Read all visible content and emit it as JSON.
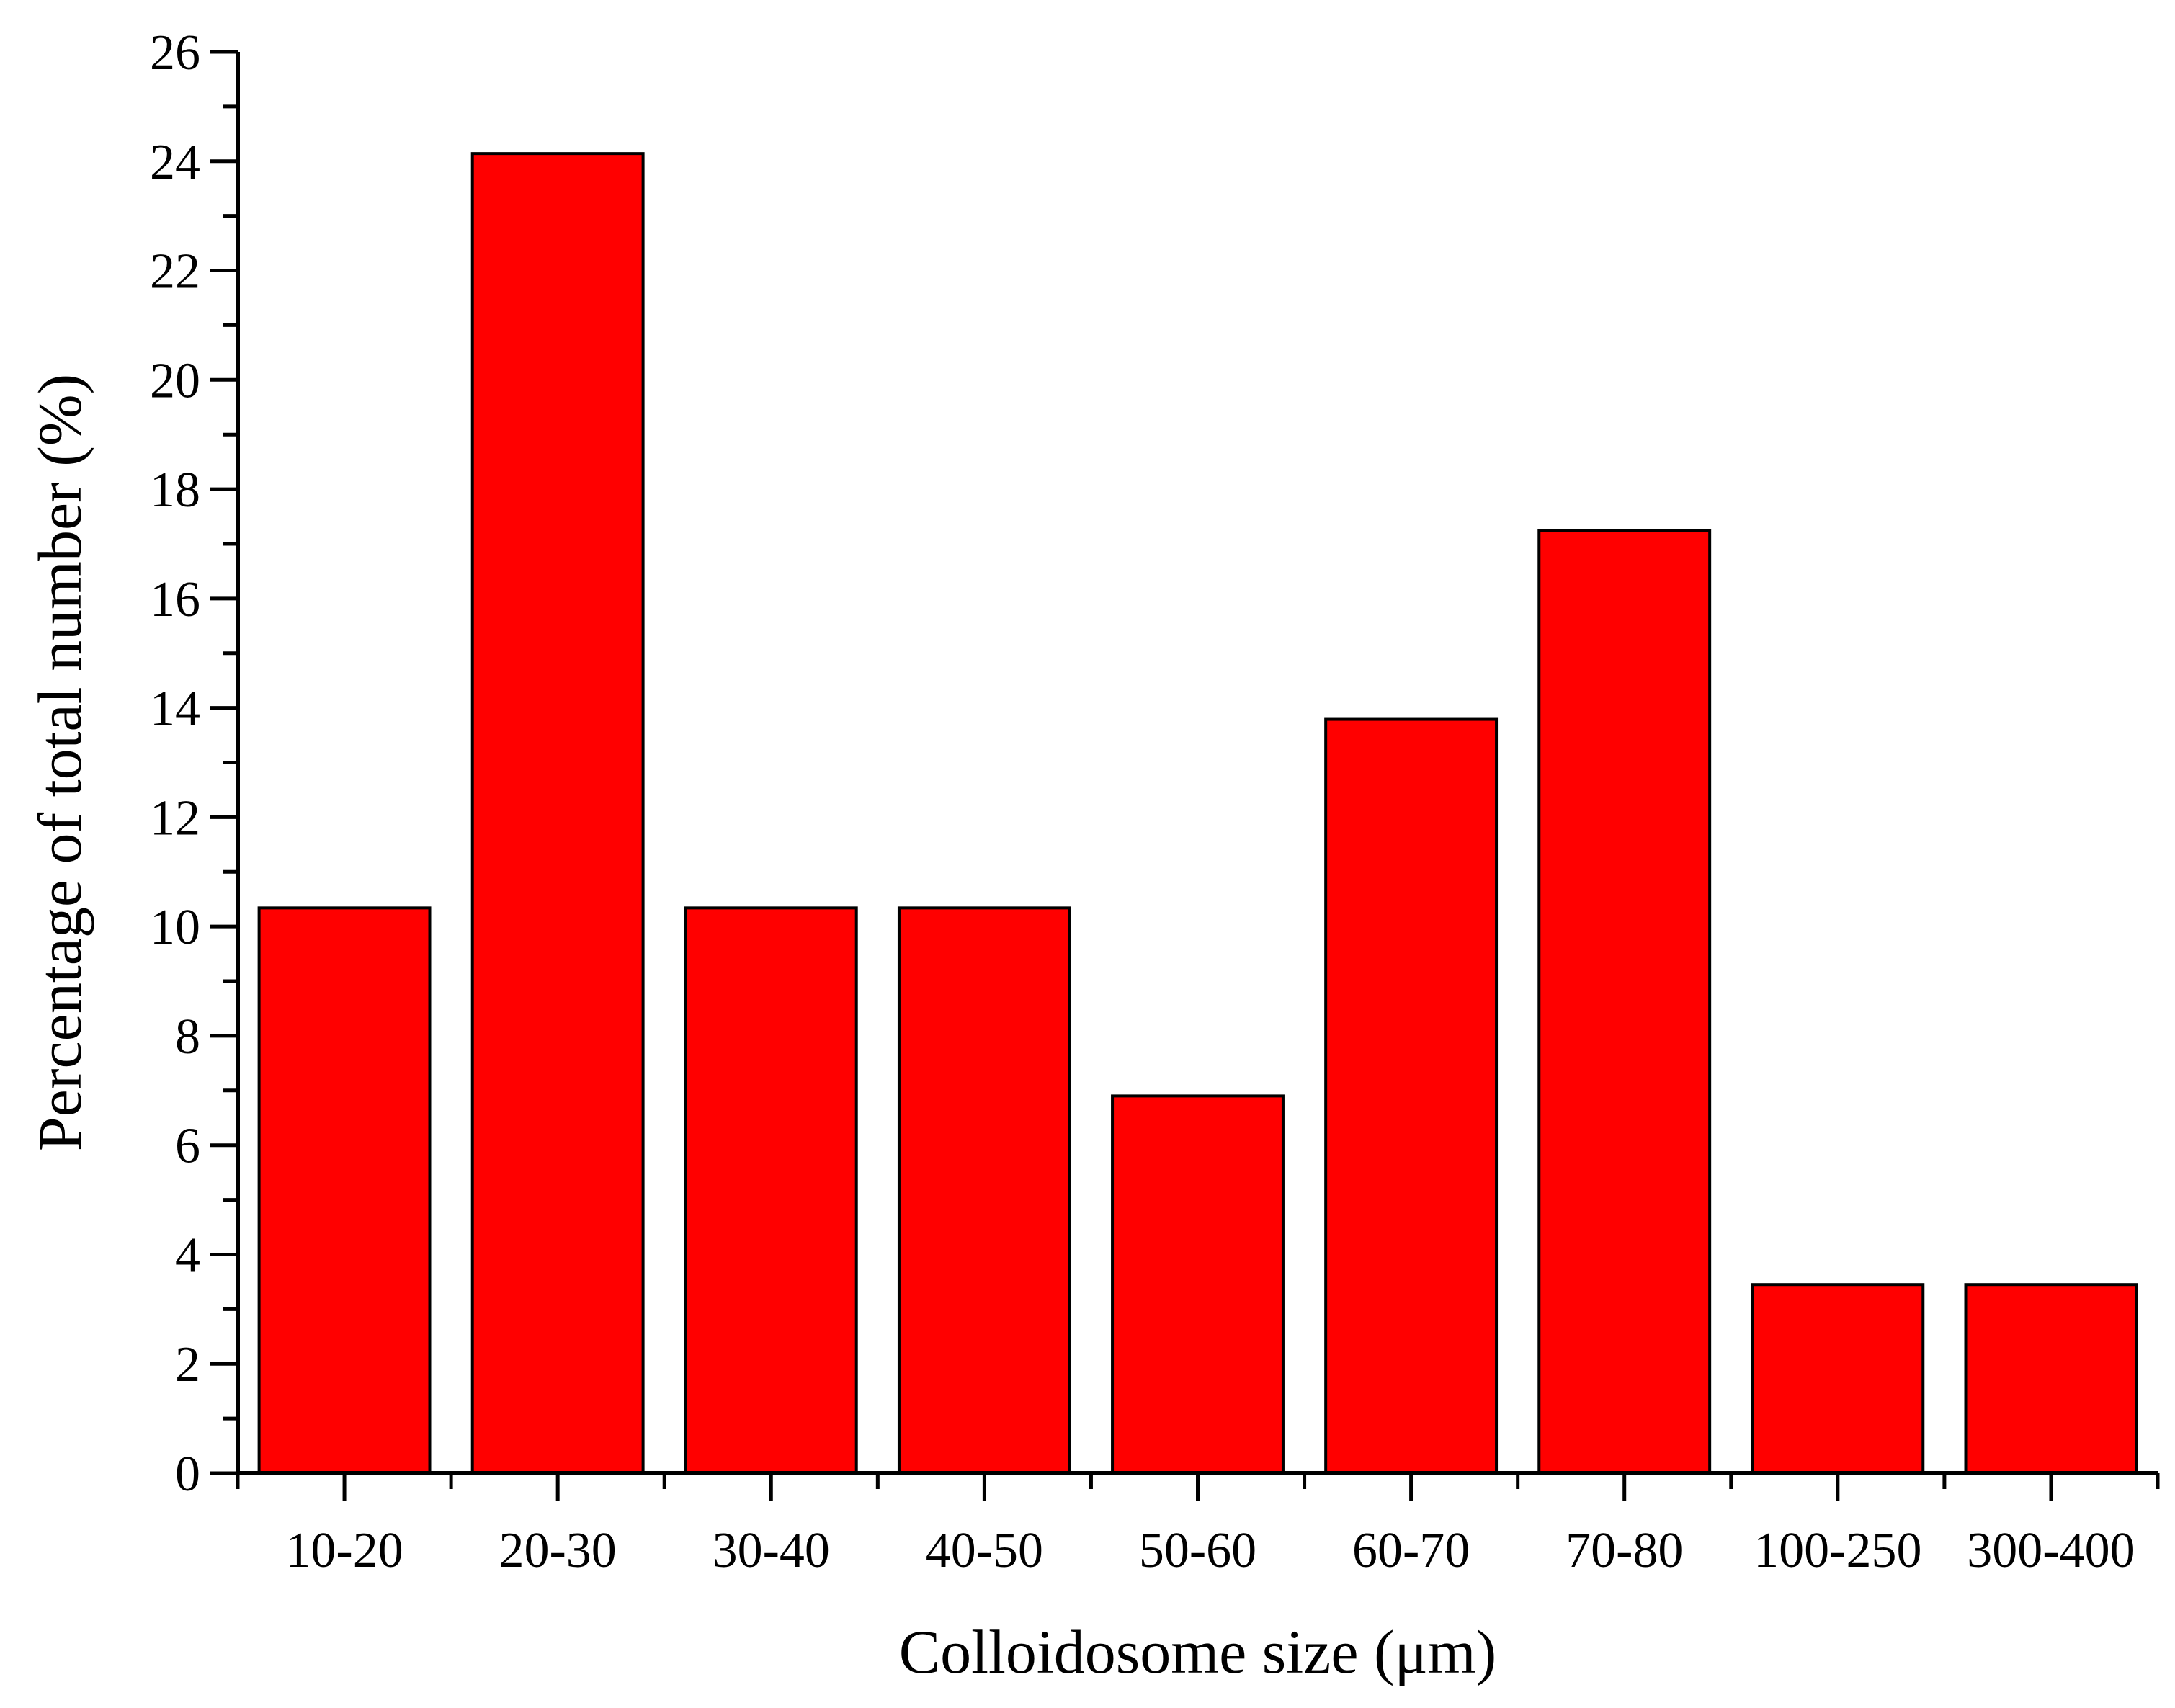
{
  "chart_data": {
    "type": "bar",
    "title": "",
    "xlabel": "Colloidosome size (μm)",
    "ylabel": "Percentage of total number (%)",
    "categories": [
      "10-20",
      "20-30",
      "30-40",
      "40-50",
      "50-60",
      "60-70",
      "70-80",
      "100-250",
      "300-400"
    ],
    "values": [
      10.34,
      24.14,
      10.34,
      10.34,
      6.9,
      13.79,
      17.24,
      3.45,
      3.45
    ],
    "ylim": [
      0,
      26
    ],
    "yticks": [
      0,
      2,
      4,
      6,
      8,
      10,
      12,
      14,
      16,
      18,
      20,
      22,
      24,
      26
    ],
    "y_minor_step": 1,
    "grid": false,
    "legend": "none",
    "bar_color": "#FF0000",
    "edge_color": "#000000"
  }
}
